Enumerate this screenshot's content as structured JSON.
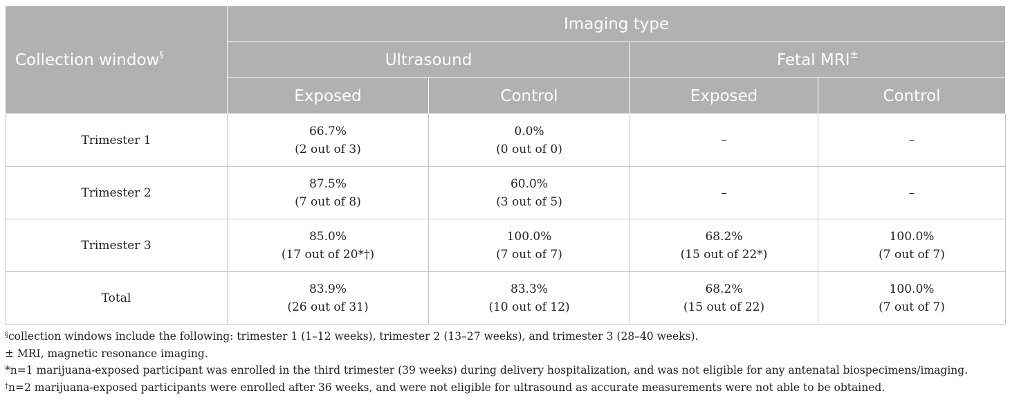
{
  "table": {
    "header": {
      "collection_window": "Collection window",
      "collection_window_mark": "§",
      "imaging_type": "Imaging type",
      "ultrasound": "Ultrasound",
      "fetal_mri": "Fetal MRI",
      "fetal_mri_mark": "±",
      "us_exposed": "Exposed",
      "us_control": "Control",
      "mri_exposed": "Exposed",
      "mri_control": "Control"
    },
    "rows": [
      {
        "label": "Trimester 1",
        "us_exposed": [
          "66.7%",
          "(2 out of 3)"
        ],
        "us_control": [
          "0.0%",
          "(0 out of 0)"
        ],
        "mri_exposed": [
          "–",
          ""
        ],
        "mri_control": [
          "–",
          ""
        ]
      },
      {
        "label": "Trimester 2",
        "us_exposed": [
          "87.5%",
          "(7 out of 8)"
        ],
        "us_control": [
          "60.0%",
          "(3 out of 5)"
        ],
        "mri_exposed": [
          "–",
          ""
        ],
        "mri_control": [
          "–",
          ""
        ]
      },
      {
        "label": "Trimester 3",
        "us_exposed": [
          "85.0%",
          "(17 out of 20*†)"
        ],
        "us_control": [
          "100.0%",
          "(7 out of 7)"
        ],
        "mri_exposed": [
          "68.2%",
          "(15 out of 22*)"
        ],
        "mri_control": [
          "100.0%",
          "(7 out of 7)"
        ]
      },
      {
        "label": "Total",
        "us_exposed": [
          "83.9%",
          "(26 out of 31)"
        ],
        "us_control": [
          "83.3%",
          "(10 out of 12)"
        ],
        "mri_exposed": [
          "68.2%",
          "(15 out of 22)"
        ],
        "mri_control": [
          "100.0%",
          "(7 out of 7)"
        ]
      }
    ]
  },
  "footnotes": [
    {
      "mark": "§",
      "text": "collection windows include the following: trimester 1 (1–12 weeks), trimester 2 (13–27 weeks), and trimester 3 (28–40 weeks)."
    },
    {
      "mark": "± ",
      "text": "MRI, magnetic resonance imaging."
    },
    {
      "mark": "*",
      "text": "n=1 marijuana-exposed participant was enrolled in the third trimester (39 weeks) during delivery hospitalization, and was not eligible for any antenatal biospecimens/imaging."
    },
    {
      "mark": "†",
      "text": "n=2 marijuana-exposed participants were enrolled after 36 weeks, and were not eligible for ultrasound as accurate measurements were not able to be obtained."
    }
  ]
}
